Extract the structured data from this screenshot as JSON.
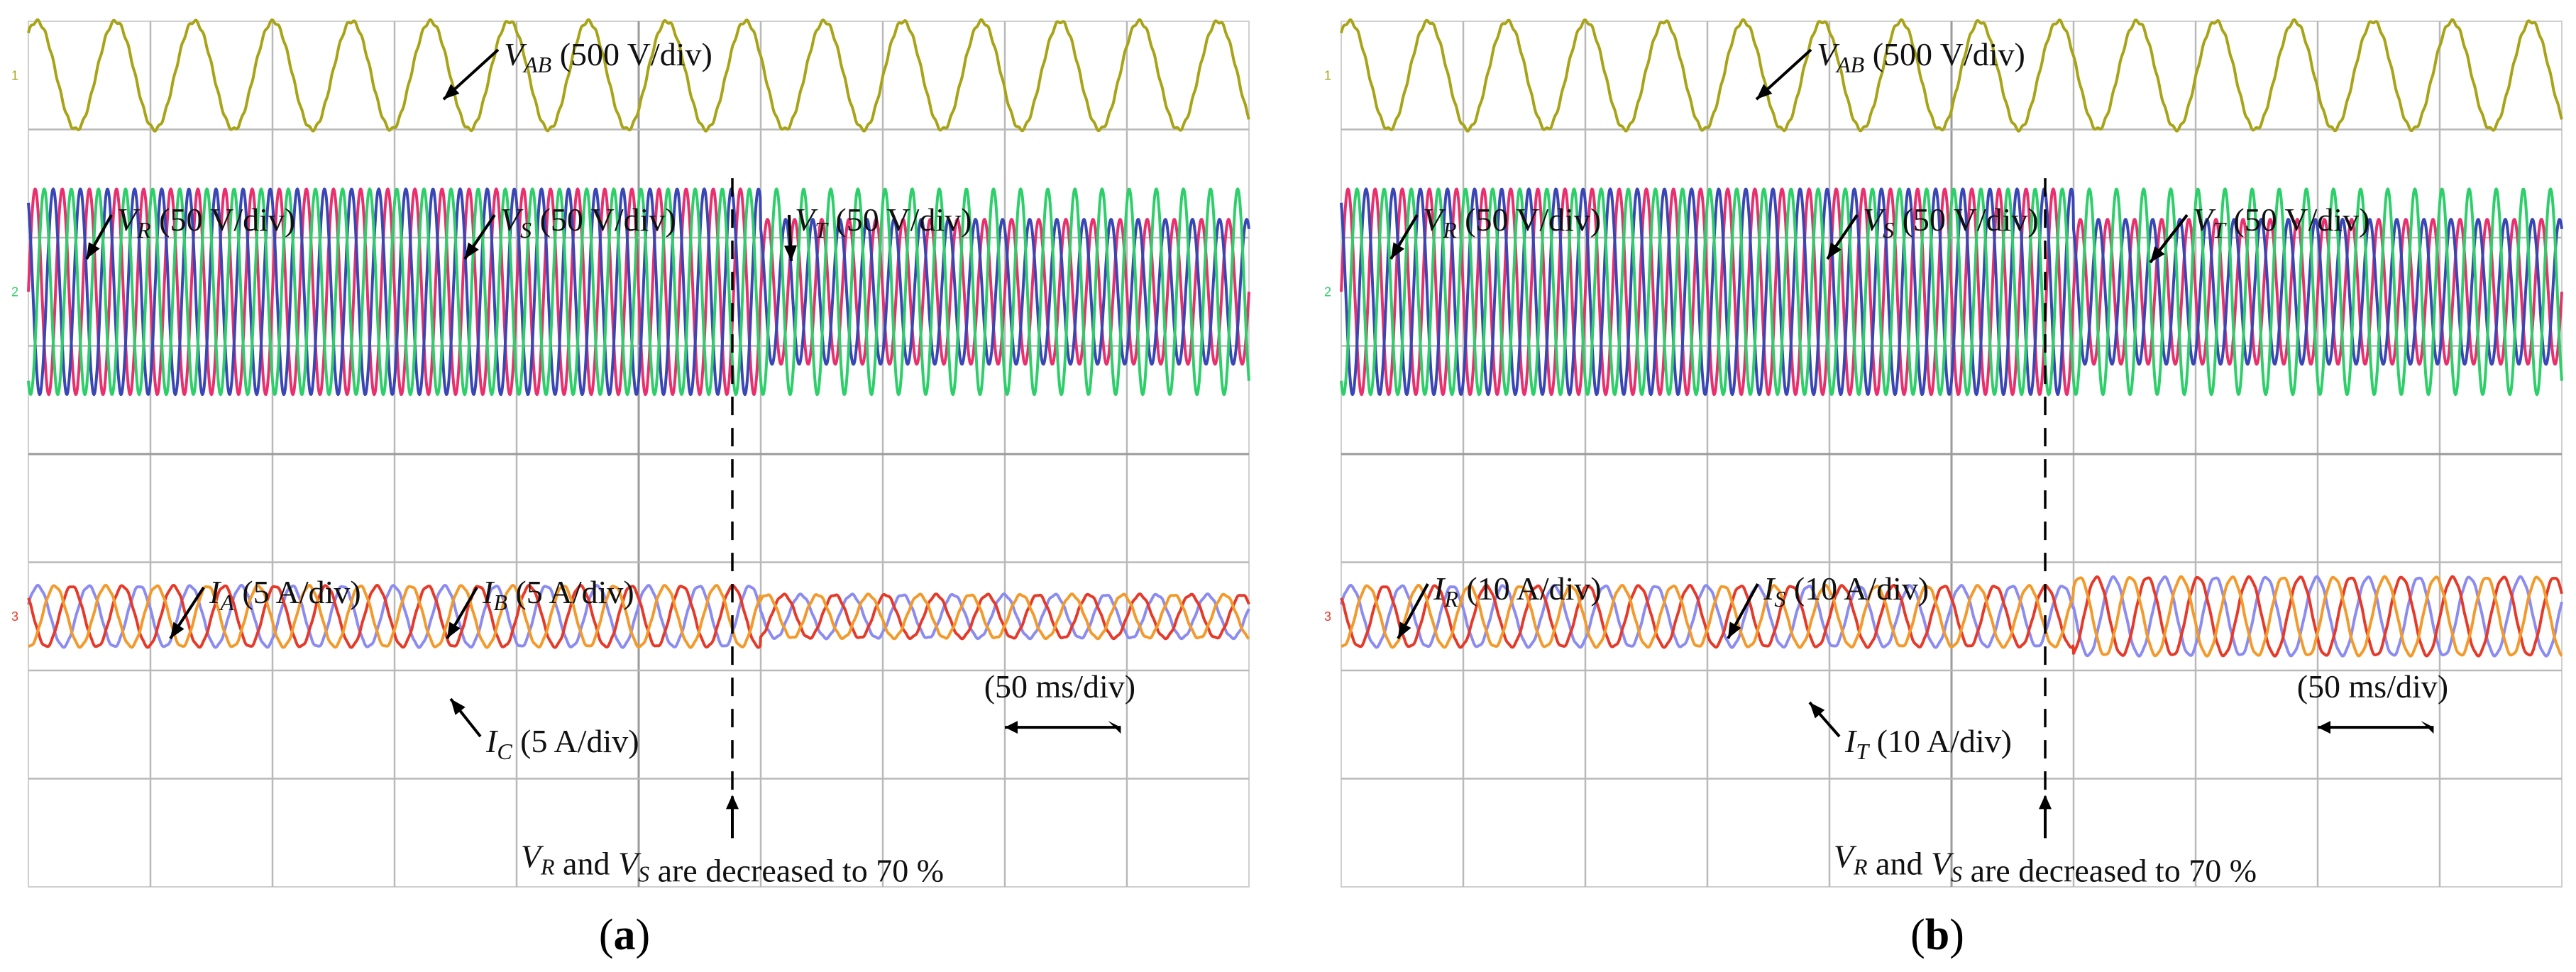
{
  "figure": {
    "colors": {
      "v_ab": "#a8a418",
      "phase_red": "#e8306e",
      "phase_blue": "#3a46b4",
      "phase_green": "#2ecf6a",
      "current_red": "#e53a2a",
      "current_blue": "#8c8cf0",
      "current_orange": "#f29a2c",
      "grid": "#b9b9b9"
    }
  },
  "chart_data": [
    {
      "type": "line",
      "panel": "a",
      "caption_open": "(",
      "caption_letter": "a",
      "caption_close": ")",
      "time_scale": "(50 ms/div)",
      "divisions": {
        "x": 10,
        "y": 8
      },
      "event": {
        "time_div": 6.0,
        "label_pre": "V",
        "label_sub1": "R",
        "label_mid": " and V",
        "label_sub2": "S",
        "label_post": " are decreased to 70 %"
      },
      "series": [
        {
          "name": "V_AB",
          "label_main": "V",
          "label_sub": "AB",
          "label_scale": " (500 V/div)",
          "channel": "1",
          "amplitude_div": 0.5,
          "pre_amplitude_div": 0.5,
          "cycles": 15.5,
          "offset_div": 3.5
        },
        {
          "name": "V_R",
          "label_main": "V",
          "label_sub": "R",
          "label_scale": " (50 V/div)",
          "channel": "2",
          "amplitude_div": 0.95,
          "post_amplitude_div": 0.67,
          "cycles": 45,
          "offset_div": 1.5
        },
        {
          "name": "V_S",
          "label_main": "V",
          "label_sub": "S",
          "label_scale": " (50 V/div)",
          "amplitude_div": 0.95,
          "post_amplitude_div": 0.67,
          "cycles": 45,
          "offset_div": 1.5
        },
        {
          "name": "V_T",
          "label_main": "V",
          "label_sub": "T",
          "label_scale": " (50 V/div)",
          "amplitude_div": 0.95,
          "post_amplitude_div": 0.95,
          "cycles": 45,
          "offset_div": 1.5
        },
        {
          "name": "I_A",
          "label_main": "I",
          "label_sub": "A",
          "label_scale": " (5 A/div)",
          "channel": "3",
          "amplitude_div": 0.28,
          "post_amplitude_div": 0.2,
          "cycles": 24,
          "offset_div": -1.5
        },
        {
          "name": "I_B",
          "label_main": "I",
          "label_sub": "B",
          "label_scale": " (5 A/div)",
          "amplitude_div": 0.28,
          "post_amplitude_div": 0.2,
          "cycles": 24,
          "offset_div": -1.5
        },
        {
          "name": "I_C",
          "label_main": "I",
          "label_sub": "C",
          "label_scale": " (5 A/div)",
          "amplitude_div": 0.28,
          "post_amplitude_div": 0.2,
          "cycles": 24,
          "offset_div": -1.5
        }
      ]
    },
    {
      "type": "line",
      "panel": "b",
      "caption_open": "(",
      "caption_letter": "b",
      "caption_close": ")",
      "time_scale": "(50 ms/div)",
      "divisions": {
        "x": 10,
        "y": 8
      },
      "event": {
        "time_div": 6.0,
        "label_pre": "V",
        "label_sub1": "R",
        "label_mid": " and V",
        "label_sub2": "S",
        "label_post": " are decreased to 70 %"
      },
      "series": [
        {
          "name": "V_AB",
          "label_main": "V",
          "label_sub": "AB",
          "label_scale": " (500 V/div)",
          "channel": "1",
          "amplitude_div": 0.5,
          "pre_amplitude_div": 0.5,
          "cycles": 15.5,
          "offset_div": 3.5
        },
        {
          "name": "V_R",
          "label_main": "V",
          "label_sub": "R",
          "label_scale": " (50 V/div)",
          "channel": "2",
          "amplitude_div": 0.95,
          "post_amplitude_div": 0.67,
          "cycles": 45,
          "offset_div": 1.5
        },
        {
          "name": "V_S",
          "label_main": "V",
          "label_sub": "S",
          "label_scale": " (50 V/div)",
          "amplitude_div": 0.95,
          "post_amplitude_div": 0.67,
          "cycles": 45,
          "offset_div": 1.5
        },
        {
          "name": "V_T",
          "label_main": "V",
          "label_sub": "T",
          "label_scale": " (50 V/div)",
          "amplitude_div": 0.95,
          "post_amplitude_div": 0.95,
          "cycles": 45,
          "offset_div": 1.5
        },
        {
          "name": "I_R",
          "label_main": "I",
          "label_sub": "R",
          "label_scale": " (10 A/div)",
          "channel": "3",
          "amplitude_div": 0.28,
          "post_amplitude_div": 0.36,
          "cycles": 24,
          "offset_div": -1.5
        },
        {
          "name": "I_S",
          "label_main": "I",
          "label_sub": "S",
          "label_scale": " (10 A/div)",
          "amplitude_div": 0.28,
          "post_amplitude_div": 0.36,
          "cycles": 24,
          "offset_div": -1.5
        },
        {
          "name": "I_T",
          "label_main": "I",
          "label_sub": "T",
          "label_scale": " (10 A/div)",
          "amplitude_div": 0.28,
          "post_amplitude_div": 0.36,
          "cycles": 24,
          "offset_div": -1.5
        }
      ]
    }
  ]
}
